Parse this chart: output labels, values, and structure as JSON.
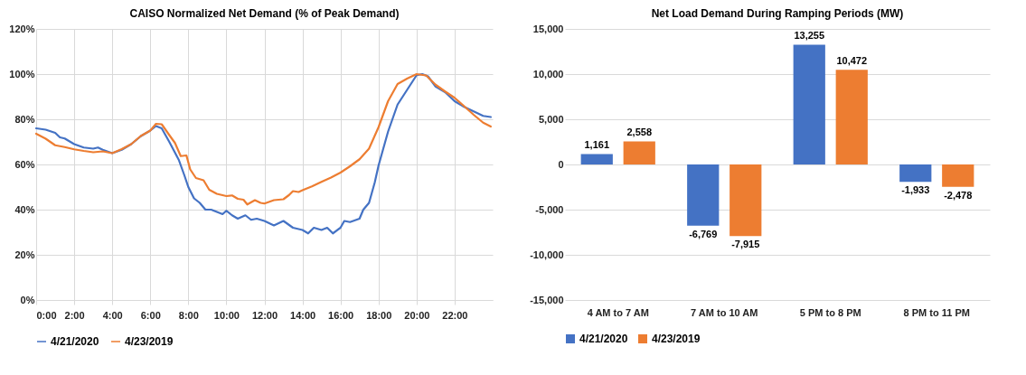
{
  "chart_data": [
    {
      "type": "line",
      "title": "CAISO Normalized Net Demand (% of Peak Demand)",
      "xlim": [
        0,
        24
      ],
      "xticks": [
        {
          "value": 0,
          "label": "0:00"
        },
        {
          "value": 2,
          "label": "2:00"
        },
        {
          "value": 4,
          "label": "4:00"
        },
        {
          "value": 6,
          "label": "6:00"
        },
        {
          "value": 8,
          "label": "8:00"
        },
        {
          "value": 10,
          "label": "10:00"
        },
        {
          "value": 12,
          "label": "12:00"
        },
        {
          "value": 14,
          "label": "14:00"
        },
        {
          "value": 16,
          "label": "16:00"
        },
        {
          "value": 18,
          "label": "18:00"
        },
        {
          "value": 20,
          "label": "20:00"
        },
        {
          "value": 22,
          "label": "22:00"
        }
      ],
      "ylim": [
        0,
        120
      ],
      "yticks": [
        {
          "value": 0,
          "label": "0%"
        },
        {
          "value": 20,
          "label": "20%"
        },
        {
          "value": 40,
          "label": "40%"
        },
        {
          "value": 60,
          "label": "60%"
        },
        {
          "value": 80,
          "label": "80%"
        },
        {
          "value": 100,
          "label": "100%"
        },
        {
          "value": 120,
          "label": "120%"
        }
      ],
      "grid": true,
      "legend": "bottom",
      "series": [
        {
          "name": "4/21/2020",
          "color": "#4472c4",
          "x": [
            0,
            0.5,
            1,
            1.25,
            1.5,
            2,
            2.5,
            3,
            3.25,
            3.5,
            4,
            4.5,
            5,
            5.5,
            6,
            6.3,
            6.6,
            7,
            7.5,
            7.8,
            8,
            8.3,
            8.6,
            8.9,
            9.2,
            9.5,
            9.8,
            10,
            10.3,
            10.6,
            11,
            11.3,
            11.6,
            12,
            12.5,
            13,
            13.5,
            14,
            14.3,
            14.6,
            15,
            15.3,
            15.6,
            16,
            16.2,
            16.5,
            17,
            17.2,
            17.5,
            17.8,
            18,
            18.5,
            19,
            19.5,
            20,
            20.3,
            20.6,
            21,
            21.5,
            22,
            22.5,
            23,
            23.5,
            23.9
          ],
          "values": [
            76,
            75.4,
            74,
            72,
            71.5,
            69,
            67.5,
            67,
            67.5,
            66.5,
            65,
            66.5,
            69,
            72.5,
            75,
            77,
            76,
            70,
            62,
            55,
            50,
            45,
            43,
            40,
            40,
            39,
            38,
            39.5,
            37.5,
            36,
            37.5,
            35.5,
            36,
            35,
            33,
            35,
            32,
            31,
            29.5,
            32,
            31,
            32,
            29.5,
            32,
            35,
            34.5,
            36,
            40,
            43,
            52,
            59.5,
            74.5,
            86.5,
            93,
            99.5,
            100,
            99,
            94.5,
            92,
            88,
            85.5,
            83.5,
            81.5,
            81
          ]
        },
        {
          "name": "4/23/2019",
          "color": "#ed7d31",
          "x": [
            0,
            0.5,
            1,
            1.5,
            2,
            2.5,
            3,
            3.5,
            4,
            4.5,
            5,
            5.5,
            6,
            6.3,
            6.6,
            7,
            7.3,
            7.6,
            7.9,
            8.1,
            8.4,
            8.8,
            9.1,
            9.5,
            10,
            10.3,
            10.6,
            10.9,
            11.1,
            11.5,
            11.8,
            12,
            12.5,
            13,
            13.3,
            13.5,
            13.8,
            14,
            14.5,
            15,
            15.5,
            16,
            16.5,
            17,
            17.5,
            18,
            18.5,
            19,
            19.5,
            20,
            20.5,
            21,
            21.5,
            22,
            22.5,
            23,
            23.5,
            23.9
          ],
          "values": [
            73.6,
            71.4,
            68.5,
            67.7,
            66.7,
            66,
            65.4,
            65.8,
            65,
            66.8,
            69,
            72.6,
            75,
            78,
            77.8,
            73,
            69.5,
            63.7,
            64,
            57.8,
            54,
            53,
            48.8,
            47,
            46,
            46.3,
            44.8,
            44.4,
            42.3,
            44.2,
            43,
            42.7,
            44.2,
            44.6,
            46.5,
            48.2,
            47.8,
            48.6,
            50.3,
            52.3,
            54.2,
            56.4,
            59.2,
            62.3,
            67,
            76.5,
            88,
            95.6,
            98,
            100,
            99.4,
            95.3,
            92.3,
            89.5,
            85.8,
            82,
            78.5,
            76.8
          ]
        }
      ]
    },
    {
      "type": "bar",
      "title": "Net Load Demand During Ramping Periods (MW)",
      "categories": [
        "4 AM to 7 AM",
        "7 AM to 10 AM",
        "5 PM to 8 PM",
        "8 PM to 11 PM"
      ],
      "ylim": [
        -15000,
        15000
      ],
      "yticks": [
        {
          "value": -15000,
          "label": "-15,000"
        },
        {
          "value": -10000,
          "label": "-10,000"
        },
        {
          "value": -5000,
          "label": "-5,000"
        },
        0,
        {
          "value": 5000,
          "label": "5,000"
        },
        {
          "value": 10000,
          "label": "10,000"
        },
        {
          "value": 15000,
          "label": "15,000"
        }
      ],
      "grid": "y",
      "legend": "bottom",
      "series": [
        {
          "name": "4/21/2020",
          "color": "#4472c4",
          "values": [
            1161,
            -6769,
            13255,
            -1933
          ],
          "value_labels": [
            "1,161",
            "-6,769",
            "13,255",
            "-1,933"
          ]
        },
        {
          "name": "4/23/2019",
          "color": "#ed7d31",
          "values": [
            2558,
            -7915,
            10472,
            -2478
          ],
          "value_labels": [
            "2,558",
            "-7,915",
            "10,472",
            "-2,478"
          ]
        }
      ]
    }
  ]
}
